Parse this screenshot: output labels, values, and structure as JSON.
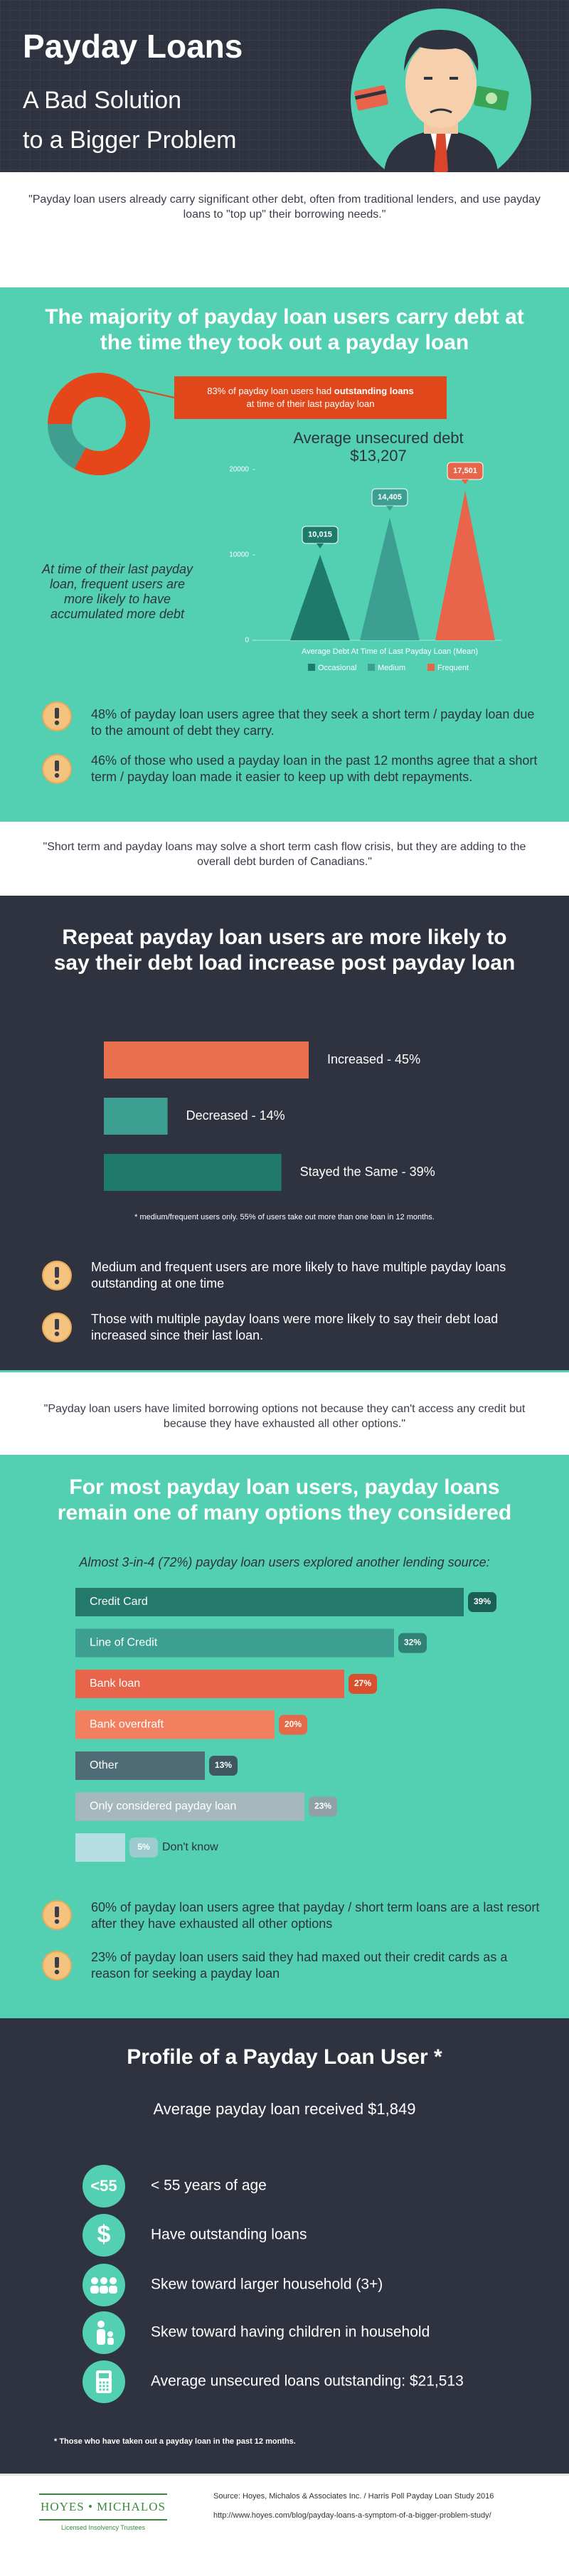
{
  "header": {
    "title": "Payday Loans",
    "subtitle_lines": [
      "A Bad Solution",
      "to a Bigger Problem"
    ]
  },
  "quotes": [
    "\"Payday loan users already carry significant other debt, often from traditional lenders, and use payday loans to \"top up\" their borrowing needs.\"",
    "\"Short term and payday loans may solve a short term cash flow crisis, but they are adding to the overall debt burden of Canadians.\"",
    "\"Payday loan users have limited borrowing options not because they can't access any credit but because they have exhausted all other options.\""
  ],
  "section1": {
    "title": "The majority of payday loan users carry debt at the time they took out a payday loan",
    "callout": {
      "before": "83% of payday loan users had",
      "bold": "outstanding loans",
      "after": "at time of  their last payday loan"
    },
    "side_note": "At time of their last payday loan, frequent users are more likely to have accumulated more debt",
    "points": [
      "48% of payday loan users agree that they seek a short term / payday loan due to the amount of debt they carry.",
      "46% of those who used a payday loan in the past 12 months agree that a short term / payday loan made it easier to keep up with debt repayments."
    ]
  },
  "section2": {
    "title": "Repeat payday loan users are more likely to say their debt load increase post payday loan",
    "note": "* medium/frequent users only. 55% of users take out more than one loan in 12 months.",
    "points": [
      "Medium and frequent users are more likely to have multiple payday loans outstanding at one time",
      "Those with multiple payday loans were more likely to say their debt load increased since their last loan."
    ]
  },
  "section3": {
    "title": "For most payday loan users, payday loans remain one of many options they considered",
    "subtitle": "Almost 3-in-4 (72%) payday loan users explored another lending source:",
    "points": [
      "60% of payday loan users agree that payday / short term loans are a last resort after they have exhausted all other options",
      "23% of payday loan users said they had maxed out their credit cards as a reason for seeking a payday loan"
    ]
  },
  "profile": {
    "title": "Profile of a Payday Loan User *",
    "average": "Average payday loan received $1,849",
    "items": [
      {
        "icon": "<55",
        "text": "< 55 years of age"
      },
      {
        "icon": "$",
        "text": "Have outstanding loans"
      },
      {
        "text": "Skew toward larger household (3+)"
      },
      {
        "text": "Skew toward having children in household"
      },
      {
        "text": "Average unsecured loans outstanding: $21,513"
      }
    ],
    "footnote": "*  Those who have taken out a payday loan in the past 12 months."
  },
  "footer": {
    "logo": "HOYES • MICHALOS",
    "tagline": "Licensed Insolvency Trustees",
    "source": "Source: Hoyes, Michalos & Associates Inc. / Harris Poll Payday Loan Study 2016",
    "url": "http://www.hoyes.com/blog/payday-loans-a-symptom-of-a-bigger-problem-study/"
  },
  "chart_data": [
    {
      "type": "pie",
      "values": [
        83,
        17
      ],
      "colors": [
        "#e5461a",
        "#3f9e8f"
      ]
    },
    {
      "type": "triangle",
      "title": "Average unsecured debt",
      "subtitle": "$13,207",
      "x_label": "Average Debt At Time of Last Payday Loan (Mean)",
      "ylim": [
        0,
        20000
      ],
      "yticks": [
        0,
        10000,
        20000
      ],
      "series": [
        {
          "name": "Occasional",
          "color": "#1e7a6a",
          "values": [
            10015
          ],
          "value_labels": [
            "10,015"
          ]
        },
        {
          "name": "Medium",
          "color": "#3c9f91",
          "values": [
            14405
          ],
          "value_labels": [
            "14,405"
          ]
        },
        {
          "name": "Frequent",
          "color": "#e8644a",
          "values": [
            17501
          ],
          "value_labels": [
            "17,501"
          ]
        }
      ]
    },
    {
      "type": "bar",
      "categories": [
        "Increased - 45%",
        "Decreased - 14%",
        "Stayed the Same - 39%"
      ],
      "values": [
        45,
        14,
        39
      ],
      "colors": [
        "#e8704f",
        "#3c9f91",
        "#1f7a6a"
      ],
      "xlim": [
        0,
        100
      ]
    },
    {
      "type": "bar",
      "categories": [
        "Credit Card",
        "Line of Credit",
        "Bank loan",
        "Bank overdraft",
        "Other",
        "Only considered payday loan",
        "Don't know"
      ],
      "values": [
        39,
        32,
        27,
        20,
        13,
        23,
        5
      ],
      "value_labels": [
        "39%",
        "32%",
        "27%",
        "20%",
        "13%",
        "23%",
        "5%"
      ],
      "colors": [
        "#237a6a",
        "#3c9f91",
        "#e8644a",
        "#f27f60",
        "#4f6b75",
        "#a7b8bc",
        "#b6dfe3"
      ],
      "badge_colors": [
        "#1a5f53",
        "#2f8075",
        "#d9502f",
        "#e56a4b",
        "#3f575f",
        "#8fa1a5",
        "#9ccbd0"
      ],
      "xlim": [
        0,
        50
      ]
    }
  ]
}
